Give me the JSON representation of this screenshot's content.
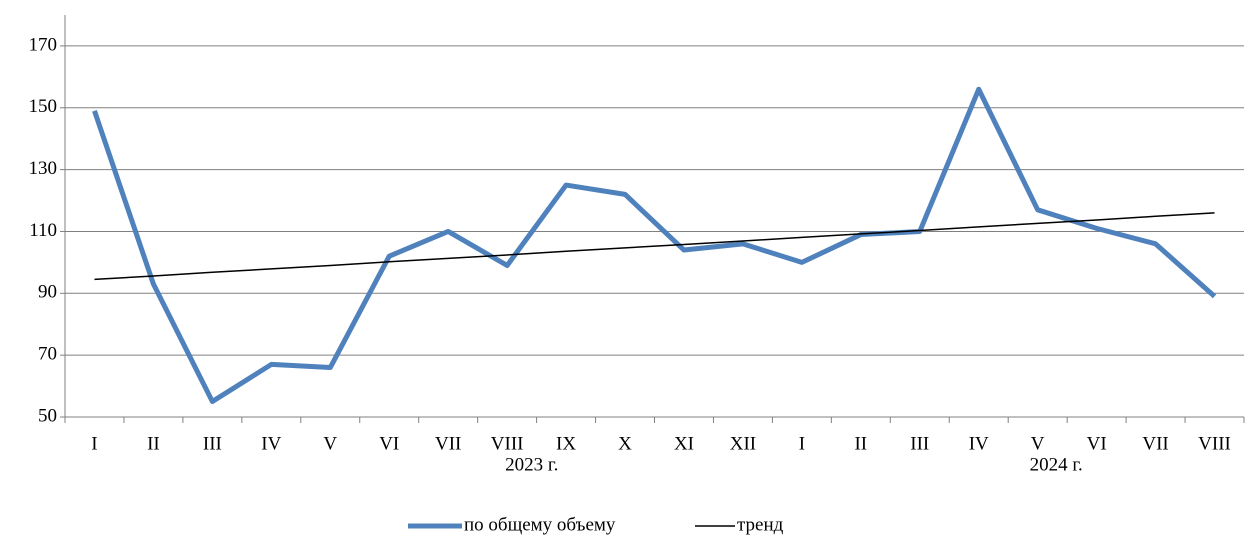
{
  "chart_data": {
    "type": "line",
    "groups": [
      {
        "label": "2023  г.",
        "categories": [
          "I",
          "II",
          "III",
          "IV",
          "V",
          "VI",
          "VII",
          "VIII",
          "IX",
          "X",
          "XI",
          "XII"
        ]
      },
      {
        "label": "2024  г.",
        "categories": [
          "I",
          "II",
          "III",
          "IV",
          "V",
          "VI",
          "VII",
          "VIII"
        ]
      }
    ],
    "series": [
      {
        "name": "по общему объему",
        "color": "#4f81bd",
        "values": [
          149,
          93,
          55,
          67,
          66,
          102,
          110,
          99,
          125,
          122,
          104,
          106,
          100,
          109,
          110,
          156,
          117,
          111,
          106,
          89
        ]
      },
      {
        "name": "тренд",
        "color": "#000000",
        "values": [
          94.5,
          95.6,
          96.8,
          97.9,
          99.0,
          100.2,
          101.3,
          102.4,
          103.6,
          104.7,
          105.8,
          106.9,
          108.1,
          109.2,
          110.3,
          111.5,
          112.6,
          113.7,
          114.9,
          116.0
        ]
      }
    ],
    "ylim": [
      50,
      180
    ],
    "yticks": [
      50,
      70,
      90,
      110,
      130,
      150,
      170
    ],
    "grid": true
  }
}
